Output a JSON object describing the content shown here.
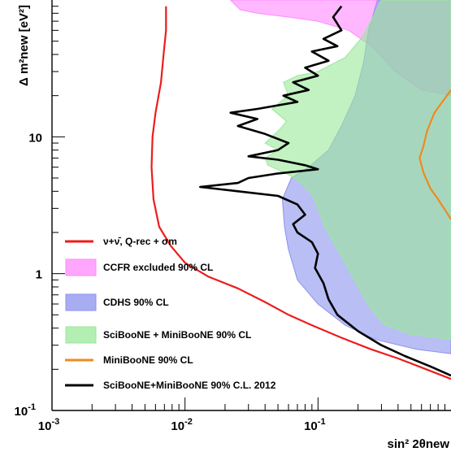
{
  "chart_data": {
    "type": "line",
    "xlabel": "sin² 2θnew",
    "ylabel": "Δ m²new [eV²]",
    "xscale": "log",
    "yscale": "log",
    "xlim": [
      0.001,
      1.0
    ],
    "ylim": [
      0.1,
      100
    ],
    "x_ticks": [
      {
        "value": 0.001,
        "label": "10",
        "exp": "-3"
      },
      {
        "value": 0.01,
        "label": "10",
        "exp": "-2"
      },
      {
        "value": 0.1,
        "label": "10",
        "exp": "-1"
      }
    ],
    "y_ticks": [
      {
        "value": 0.1,
        "label": "10",
        "exp": "-1"
      },
      {
        "value": 1,
        "label": "1",
        "exp": ""
      },
      {
        "value": 10,
        "label": "10",
        "exp": ""
      }
    ],
    "legend_position": "bottom-left",
    "series": [
      {
        "name": "CCFR excluded 90% CL",
        "kind": "region",
        "color": "#ff88ff",
        "points": [
          [
            0.022,
            100
          ],
          [
            0.026,
            85
          ],
          [
            0.035,
            80
          ],
          [
            0.06,
            75
          ],
          [
            0.1,
            70
          ],
          [
            0.17,
            60
          ],
          [
            0.26,
            45
          ],
          [
            0.38,
            30
          ],
          [
            0.6,
            22
          ],
          [
            1.0,
            20
          ],
          [
            1.0,
            100
          ]
        ]
      },
      {
        "name": "CDHS 90% CL",
        "kind": "region",
        "color": "#8b92ee",
        "points": [
          [
            0.28,
            100
          ],
          [
            0.24,
            60
          ],
          [
            0.22,
            35
          ],
          [
            0.19,
            20
          ],
          [
            0.15,
            12
          ],
          [
            0.12,
            8
          ],
          [
            0.085,
            6
          ],
          [
            0.063,
            5
          ],
          [
            0.054,
            3.5
          ],
          [
            0.056,
            2.2
          ],
          [
            0.06,
            1.5
          ],
          [
            0.07,
            0.9
          ],
          [
            0.1,
            0.6
          ],
          [
            0.16,
            0.42
          ],
          [
            0.27,
            0.33
          ],
          [
            0.55,
            0.28
          ],
          [
            1.0,
            0.26
          ],
          [
            1.0,
            100
          ]
        ]
      },
      {
        "name": "SciBooNE + MiniBooNE 90% CL",
        "kind": "region",
        "color": "#9ae89a",
        "points": [
          [
            0.3,
            100
          ],
          [
            0.22,
            55
          ],
          [
            0.16,
            38
          ],
          [
            0.1,
            30
          ],
          [
            0.07,
            28
          ],
          [
            0.055,
            25
          ],
          [
            0.06,
            20
          ],
          [
            0.052,
            18
          ],
          [
            0.045,
            16
          ],
          [
            0.058,
            13
          ],
          [
            0.05,
            11
          ],
          [
            0.04,
            9
          ],
          [
            0.05,
            8
          ],
          [
            0.04,
            7
          ],
          [
            0.042,
            6.2
          ],
          [
            0.06,
            5.3
          ],
          [
            0.075,
            4.6
          ],
          [
            0.09,
            3.8
          ],
          [
            0.1,
            3.0
          ],
          [
            0.11,
            2.3
          ],
          [
            0.13,
            1.7
          ],
          [
            0.16,
            1.2
          ],
          [
            0.2,
            0.8
          ],
          [
            0.25,
            0.55
          ],
          [
            0.32,
            0.42
          ],
          [
            0.5,
            0.36
          ],
          [
            1.0,
            0.33
          ],
          [
            1.0,
            100
          ]
        ]
      },
      {
        "name": "ν+ν̄, Q-rec + σm",
        "kind": "line",
        "color": "#ee1c1c",
        "points": [
          [
            0.0072,
            90
          ],
          [
            0.0072,
            60
          ],
          [
            0.0069,
            40
          ],
          [
            0.0066,
            25
          ],
          [
            0.006,
            15
          ],
          [
            0.0057,
            10
          ],
          [
            0.0056,
            6
          ],
          [
            0.0058,
            3.5
          ],
          [
            0.0064,
            2.2
          ],
          [
            0.0078,
            1.6
          ],
          [
            0.01,
            1.2
          ],
          [
            0.015,
            0.95
          ],
          [
            0.025,
            0.78
          ],
          [
            0.04,
            0.62
          ],
          [
            0.06,
            0.5
          ],
          [
            0.09,
            0.42
          ],
          [
            0.15,
            0.34
          ],
          [
            0.25,
            0.28
          ],
          [
            0.4,
            0.24
          ],
          [
            0.65,
            0.2
          ],
          [
            1.0,
            0.17
          ]
        ]
      },
      {
        "name": "MiniBooNE 90% CL",
        "kind": "line",
        "color": "#ef8a1e",
        "points": [
          [
            1.0,
            22
          ],
          [
            0.75,
            15
          ],
          [
            0.66,
            11
          ],
          [
            0.62,
            8.5
          ],
          [
            0.58,
            7
          ],
          [
            0.62,
            5.5
          ],
          [
            0.7,
            4.2
          ],
          [
            0.8,
            3.5
          ],
          [
            1.0,
            2.5
          ]
        ]
      },
      {
        "name": "SciBooNE+MiniBooNE 90% C.L. 2012",
        "kind": "line",
        "color": "#000000",
        "points": [
          [
            0.15,
            90
          ],
          [
            0.13,
            75
          ],
          [
            0.15,
            60
          ],
          [
            0.11,
            52
          ],
          [
            0.14,
            46
          ],
          [
            0.09,
            42
          ],
          [
            0.12,
            36
          ],
          [
            0.08,
            32
          ],
          [
            0.1,
            28
          ],
          [
            0.065,
            25
          ],
          [
            0.085,
            22
          ],
          [
            0.055,
            20
          ],
          [
            0.07,
            18
          ],
          [
            0.035,
            16
          ],
          [
            0.022,
            15
          ],
          [
            0.035,
            13.5
          ],
          [
            0.025,
            12
          ],
          [
            0.04,
            10.5
          ],
          [
            0.06,
            9
          ],
          [
            0.05,
            8
          ],
          [
            0.03,
            7.2
          ],
          [
            0.05,
            6.8
          ],
          [
            0.08,
            6.2
          ],
          [
            0.1,
            5.8
          ],
          [
            0.05,
            5.4
          ],
          [
            0.03,
            5
          ],
          [
            0.025,
            4.6
          ],
          [
            0.013,
            4.3
          ],
          [
            0.025,
            4.0
          ],
          [
            0.05,
            3.7
          ],
          [
            0.07,
            3.2
          ],
          [
            0.08,
            2.7
          ],
          [
            0.065,
            2.3
          ],
          [
            0.07,
            2.0
          ],
          [
            0.09,
            1.7
          ],
          [
            0.1,
            1.4
          ],
          [
            0.095,
            1.1
          ],
          [
            0.11,
            0.85
          ],
          [
            0.12,
            0.65
          ],
          [
            0.14,
            0.5
          ],
          [
            0.2,
            0.38
          ],
          [
            0.3,
            0.3
          ],
          [
            0.45,
            0.25
          ],
          [
            0.7,
            0.21
          ],
          [
            1.0,
            0.18
          ]
        ]
      }
    ]
  },
  "legend": [
    {
      "type": "line",
      "color": "#ee1c1c",
      "label": "ν+ν̄, Q-rec + σm"
    },
    {
      "type": "box",
      "color": "#ff88ff",
      "label": "CCFR excluded 90% CL"
    },
    {
      "type": "box",
      "color": "#8b92ee",
      "label": "CDHS 90% CL"
    },
    {
      "type": "box",
      "color": "#9ae89a",
      "label": "SciBooNE + MiniBooNE 90% CL"
    },
    {
      "type": "line",
      "color": "#ef8a1e",
      "label": "MiniBooNE 90% CL"
    },
    {
      "type": "line",
      "color": "#000000",
      "label": "SciBooNE+MiniBooNE 90% C.L. 2012"
    }
  ]
}
